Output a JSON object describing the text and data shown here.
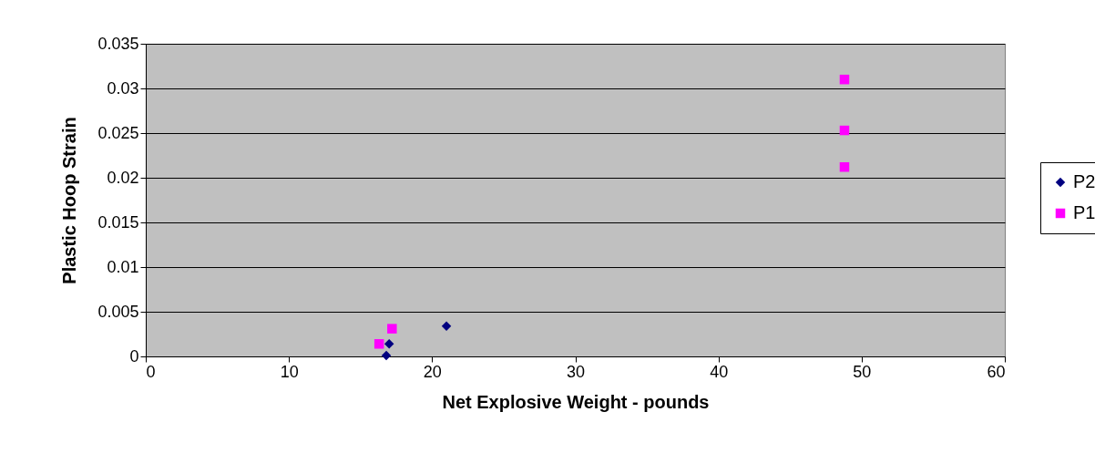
{
  "chart_data": {
    "type": "scatter",
    "xlabel": "Net Explosive Weight - pounds",
    "ylabel": "Plastic Hoop Strain",
    "xlim": [
      0,
      60
    ],
    "xticks": [
      0,
      10,
      20,
      30,
      40,
      50,
      60
    ],
    "ylim": [
      0,
      0.035
    ],
    "yticks": [
      0,
      0.005,
      0.01,
      0.015,
      0.02,
      0.025,
      0.03,
      0.035
    ],
    "grid": "y",
    "legend": "right",
    "series": [
      {
        "name": "P2",
        "color": "#000080",
        "marker": "diamond",
        "x": [
          21.0,
          17.0,
          16.8
        ],
        "values": [
          0.0034,
          0.0014,
          0.0001
        ]
      },
      {
        "name": "P1",
        "color": "#ff00ff",
        "marker": "square",
        "x": [
          48.8,
          48.8,
          48.8,
          17.2,
          16.3
        ],
        "values": [
          0.031,
          0.0253,
          0.0212,
          0.0031,
          0.0014
        ]
      }
    ]
  }
}
